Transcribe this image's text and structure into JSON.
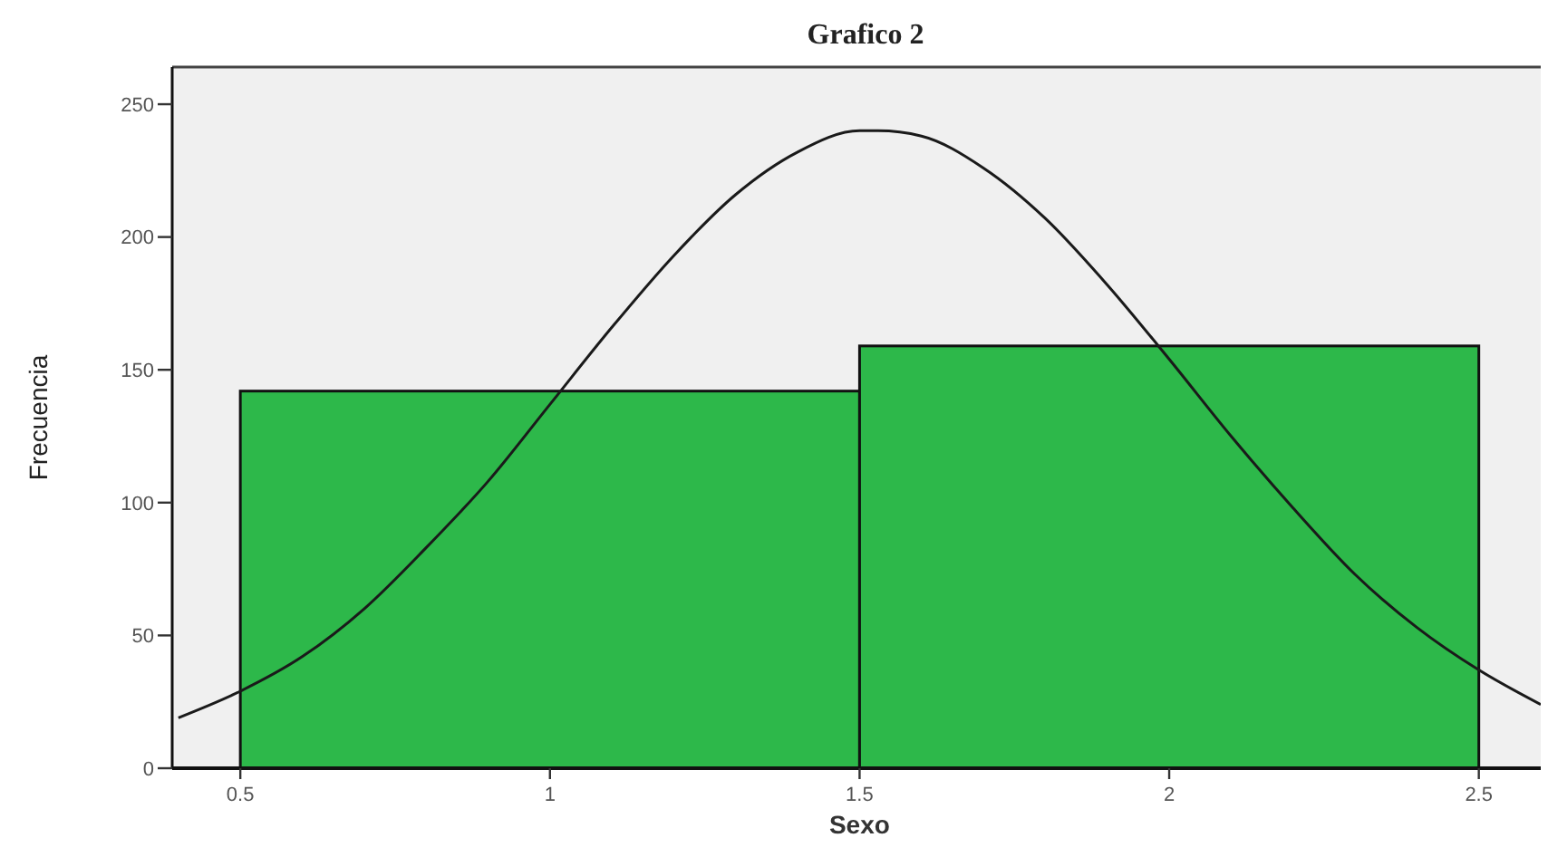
{
  "chart_data": {
    "type": "histogram",
    "title": "Grafico 2",
    "xlabel": "Sexo",
    "ylabel": "Frecuencia",
    "bins": [
      0.5,
      1.5,
      2.5
    ],
    "values": [
      142,
      159
    ],
    "color": "#2db84a",
    "series": [
      {
        "type": "line",
        "color": "#1a1a1a",
        "x": [
          0.4,
          0.5,
          0.6,
          0.7,
          0.8,
          0.9,
          1.0,
          1.1,
          1.2,
          1.3,
          1.4,
          1.5,
          1.53,
          1.6,
          1.7,
          1.8,
          1.9,
          2.0,
          2.1,
          2.2,
          2.3,
          2.4,
          2.5,
          2.6
        ],
        "values": [
          19,
          29,
          42,
          60,
          83,
          108,
          137,
          166,
          193,
          216,
          232,
          240,
          240,
          238,
          226,
          207,
          182,
          154,
          125,
          98,
          73,
          53,
          37,
          24
        ]
      }
    ],
    "xlim": [
      0.39,
      2.6
    ],
    "xticks": [
      0.5,
      1,
      1.5,
      2,
      2.5
    ],
    "ylim": [
      0,
      264
    ],
    "yticks": [
      0,
      50,
      100,
      150,
      200,
      250
    ],
    "grid": false,
    "marker": "none",
    "line_style": "solid"
  }
}
